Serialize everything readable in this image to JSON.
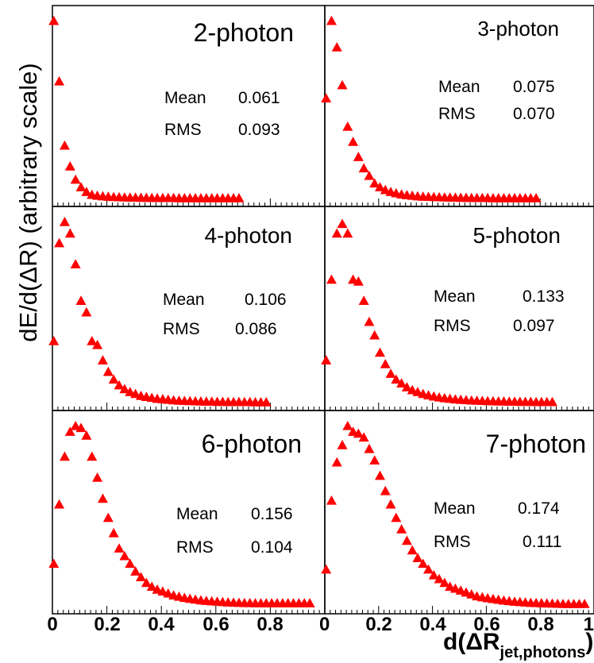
{
  "chart_data": {
    "type": "scatter",
    "y_axis_label": "dE/d(ΔR)  (arbitrary scale)",
    "x_axis_label": "d(ΔR",
    "x_axis_label_sub": "jet,photons",
    "x_axis_label_close": ")",
    "marker": "filled triangle",
    "marker_color": "#ff0000",
    "xlim": [
      0,
      1
    ],
    "y_scale": "arbitrary",
    "x_tick_labels_left": [
      "0",
      "0.2",
      "0.4",
      "0.6",
      "0.8"
    ],
    "x_tick_labels_right": [
      "0",
      "0.2",
      "0.4",
      "0.6",
      "0.8",
      "1"
    ],
    "grid": false,
    "panels": [
      {
        "title": "2-photon",
        "mean_label": "Mean",
        "mean": "0.061",
        "rms_label": "RMS",
        "rms": "0.093",
        "x": [
          0.005,
          0.025,
          0.045,
          0.065,
          0.085,
          0.105,
          0.125,
          0.145,
          0.165,
          0.185,
          0.205,
          0.225,
          0.245,
          0.265,
          0.285,
          0.305,
          0.325,
          0.345,
          0.365,
          0.385,
          0.405,
          0.425,
          0.445,
          0.465,
          0.485,
          0.505,
          0.525,
          0.545,
          0.565,
          0.585,
          0.605,
          0.625,
          0.645,
          0.665,
          0.685
        ],
        "y": [
          0.94,
          0.62,
          0.28,
          0.17,
          0.1,
          0.06,
          0.035,
          0.02,
          0.015,
          0.012,
          0.01,
          0.008,
          0.007,
          0.006,
          0.005,
          0.005,
          0.004,
          0.004,
          0.003,
          0.003,
          0.003,
          0.003,
          0.003,
          0.002,
          0.002,
          0.002,
          0.002,
          0.002,
          0.002,
          0.002,
          0.002,
          0.002,
          0.002,
          0.002,
          0.002
        ]
      },
      {
        "title": "3-photon",
        "mean_label": "Mean",
        "mean": "0.075",
        "rms_label": "RMS",
        "rms": "0.070",
        "x": [
          0.005,
          0.025,
          0.045,
          0.065,
          0.085,
          0.105,
          0.125,
          0.145,
          0.165,
          0.185,
          0.205,
          0.225,
          0.245,
          0.265,
          0.285,
          0.305,
          0.325,
          0.345,
          0.365,
          0.385,
          0.405,
          0.425,
          0.445,
          0.465,
          0.485,
          0.505,
          0.525,
          0.545,
          0.565,
          0.585,
          0.605,
          0.625,
          0.645,
          0.665,
          0.685,
          0.705,
          0.725,
          0.745,
          0.765,
          0.785
        ],
        "y": [
          0.53,
          0.94,
          0.8,
          0.6,
          0.38,
          0.3,
          0.22,
          0.16,
          0.12,
          0.08,
          0.06,
          0.045,
          0.035,
          0.028,
          0.022,
          0.018,
          0.015,
          0.012,
          0.01,
          0.009,
          0.008,
          0.007,
          0.006,
          0.005,
          0.005,
          0.004,
          0.004,
          0.003,
          0.003,
          0.003,
          0.003,
          0.002,
          0.002,
          0.002,
          0.002,
          0.002,
          0.002,
          0.002,
          0.002,
          0.002
        ]
      },
      {
        "title": "4-photon",
        "mean_label": "Mean",
        "mean": "0.106",
        "rms_label": "RMS",
        "rms": "0.086",
        "x": [
          0.005,
          0.025,
          0.045,
          0.065,
          0.085,
          0.105,
          0.125,
          0.145,
          0.165,
          0.185,
          0.205,
          0.225,
          0.245,
          0.265,
          0.285,
          0.305,
          0.325,
          0.345,
          0.365,
          0.385,
          0.405,
          0.425,
          0.445,
          0.465,
          0.485,
          0.505,
          0.525,
          0.545,
          0.565,
          0.585,
          0.605,
          0.625,
          0.645,
          0.665,
          0.685,
          0.705,
          0.725,
          0.745,
          0.765,
          0.785
        ],
        "y": [
          0.32,
          0.83,
          0.94,
          0.88,
          0.72,
          0.53,
          0.47,
          0.32,
          0.3,
          0.22,
          0.16,
          0.12,
          0.09,
          0.07,
          0.055,
          0.045,
          0.035,
          0.03,
          0.025,
          0.02,
          0.018,
          0.015,
          0.012,
          0.01,
          0.009,
          0.008,
          0.007,
          0.006,
          0.005,
          0.005,
          0.004,
          0.004,
          0.003,
          0.003,
          0.003,
          0.003,
          0.003,
          0.002,
          0.002,
          0.002
        ]
      },
      {
        "title": "5-photon",
        "mean_label": "Mean",
        "mean": "0.133",
        "rms_label": "RMS",
        "rms": "0.097",
        "x": [
          0.005,
          0.025,
          0.045,
          0.065,
          0.085,
          0.105,
          0.125,
          0.145,
          0.165,
          0.185,
          0.205,
          0.225,
          0.245,
          0.265,
          0.285,
          0.305,
          0.325,
          0.345,
          0.365,
          0.385,
          0.405,
          0.425,
          0.445,
          0.465,
          0.485,
          0.505,
          0.525,
          0.545,
          0.565,
          0.585,
          0.605,
          0.625,
          0.645,
          0.665,
          0.685,
          0.705,
          0.725,
          0.745,
          0.765,
          0.785,
          0.805,
          0.825,
          0.845
        ],
        "y": [
          0.22,
          0.64,
          0.88,
          0.93,
          0.88,
          0.64,
          0.63,
          0.53,
          0.42,
          0.35,
          0.26,
          0.2,
          0.15,
          0.12,
          0.1,
          0.08,
          0.065,
          0.055,
          0.045,
          0.038,
          0.032,
          0.027,
          0.023,
          0.02,
          0.017,
          0.015,
          0.013,
          0.011,
          0.01,
          0.009,
          0.008,
          0.007,
          0.006,
          0.006,
          0.005,
          0.005,
          0.004,
          0.004,
          0.004,
          0.003,
          0.003,
          0.003,
          0.003
        ]
      },
      {
        "title": "6-photon",
        "mean_label": "Mean",
        "mean": "0.156",
        "rms_label": "RMS",
        "rms": "0.104",
        "x": [
          0.005,
          0.025,
          0.045,
          0.065,
          0.085,
          0.105,
          0.125,
          0.145,
          0.165,
          0.185,
          0.205,
          0.225,
          0.245,
          0.265,
          0.285,
          0.305,
          0.325,
          0.345,
          0.365,
          0.385,
          0.405,
          0.425,
          0.445,
          0.465,
          0.485,
          0.505,
          0.525,
          0.545,
          0.565,
          0.585,
          0.605,
          0.625,
          0.645,
          0.665,
          0.685,
          0.705,
          0.725,
          0.745,
          0.765,
          0.785,
          0.805,
          0.825,
          0.845,
          0.865,
          0.885,
          0.905,
          0.925,
          0.945
        ],
        "y": [
          0.22,
          0.53,
          0.78,
          0.91,
          0.94,
          0.93,
          0.89,
          0.78,
          0.67,
          0.56,
          0.46,
          0.38,
          0.3,
          0.26,
          0.22,
          0.18,
          0.15,
          0.12,
          0.1,
          0.085,
          0.075,
          0.065,
          0.055,
          0.048,
          0.042,
          0.037,
          0.033,
          0.029,
          0.026,
          0.024,
          0.022,
          0.02,
          0.018,
          0.017,
          0.016,
          0.015,
          0.015,
          0.014,
          0.014,
          0.014,
          0.014,
          0.014,
          0.014,
          0.014,
          0.014,
          0.014,
          0.014,
          0.014
        ]
      },
      {
        "title": "7-photon",
        "mean_label": "Mean",
        "mean": "0.174",
        "rms_label": "RMS",
        "rms": "0.111",
        "x": [
          0.005,
          0.025,
          0.045,
          0.065,
          0.085,
          0.105,
          0.125,
          0.145,
          0.165,
          0.185,
          0.205,
          0.225,
          0.245,
          0.265,
          0.285,
          0.305,
          0.325,
          0.345,
          0.365,
          0.385,
          0.405,
          0.425,
          0.445,
          0.465,
          0.485,
          0.505,
          0.525,
          0.545,
          0.565,
          0.585,
          0.605,
          0.625,
          0.645,
          0.665,
          0.685,
          0.705,
          0.725,
          0.745,
          0.765,
          0.785,
          0.805,
          0.825,
          0.845,
          0.865,
          0.885,
          0.905,
          0.925,
          0.945,
          0.965
        ],
        "y": [
          0.19,
          0.55,
          0.75,
          0.84,
          0.94,
          0.91,
          0.9,
          0.88,
          0.82,
          0.76,
          0.68,
          0.6,
          0.53,
          0.46,
          0.4,
          0.34,
          0.29,
          0.25,
          0.22,
          0.19,
          0.16,
          0.14,
          0.12,
          0.1,
          0.09,
          0.08,
          0.07,
          0.06,
          0.05,
          0.045,
          0.04,
          0.036,
          0.032,
          0.028,
          0.025,
          0.022,
          0.02,
          0.018,
          0.016,
          0.015,
          0.014,
          0.013,
          0.012,
          0.011,
          0.01,
          0.01,
          0.01,
          0.01,
          0.01
        ]
      }
    ]
  }
}
